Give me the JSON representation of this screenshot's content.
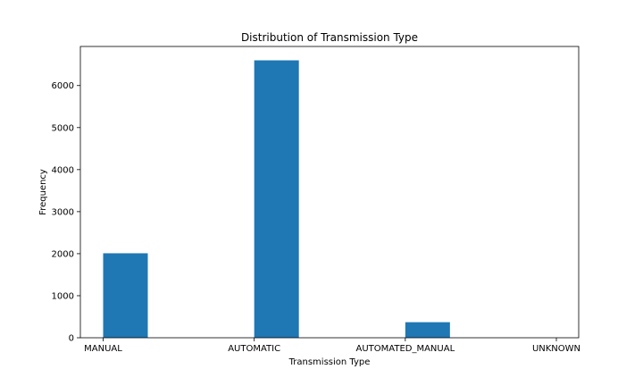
{
  "chart_data": {
    "type": "bar",
    "title": "Distribution of Transmission Type",
    "xlabel": "Transmission Type",
    "ylabel": "Frequency",
    "categories": [
      "MANUAL",
      "AUTOMATIC",
      "AUTOMATED_MANUAL",
      "UNKNOWN"
    ],
    "values": [
      2010,
      6600,
      370,
      0
    ],
    "ylim": [
      0,
      6930
    ],
    "yticks": [
      0,
      1000,
      2000,
      3000,
      4000,
      5000,
      6000
    ],
    "bar_color": "#1f77b4",
    "grid": false,
    "legend": "none"
  }
}
